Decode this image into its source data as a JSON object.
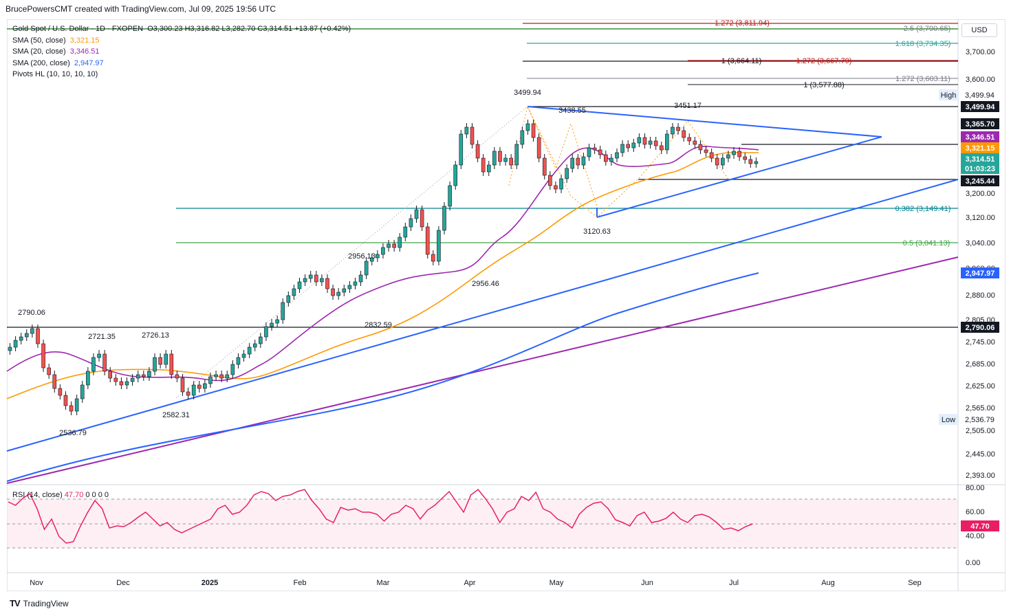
{
  "header": {
    "text": "BrucePowersCMT created with TradingView.com, Jul 09, 2025 19:56 UTC"
  },
  "legend": {
    "symbol": "Gold Spot / U.S. Dollar · 1D · FXOPEN",
    "ohlc": "O3,300.23  H3,316.82  L3,282.70  C3,314.51  +13.87 (+0.42%)",
    "sma50_label": "SMA (50, close)",
    "sma50_value": "3,321.15",
    "sma20_label": "SMA (20, close)",
    "sma20_value": "3,346.51",
    "sma200_label": "SMA (200, close)",
    "sma200_value": "2,947.97",
    "pivots_label": "Pivots HL (10, 10, 10, 10)"
  },
  "rsi_legend": {
    "label": "RSI (14, close)",
    "value": "47.70",
    "extras": "0 0 0 0"
  },
  "currency": "USD",
  "colors": {
    "up": "#26a69a",
    "down": "#ef5350",
    "sma50": "#ff9800",
    "sma20": "#9c27b0",
    "sma200": "#2962ff",
    "trend": "#2962ff",
    "rsi": "#e91e63"
  },
  "price_axis": [
    "3,700.00",
    "3,600.00",
    "3,200.00",
    "3,120.00",
    "3,040.00",
    "2,960.00",
    "2,880.00",
    "2,805.00",
    "2,745.00",
    "2,685.00",
    "2,625.00",
    "2,565.00",
    "2,505.00",
    "2,445.00",
    "2,393.00"
  ],
  "rsi_axis": [
    "80.00",
    "60.00",
    "40.00",
    "0.00"
  ],
  "price_tags": [
    {
      "text": "High",
      "kind": "label"
    },
    {
      "text": "3,499.94",
      "kind": "plain"
    },
    {
      "text": "3,499.94",
      "kind": "black"
    },
    {
      "text": "3,365.70",
      "kind": "black"
    },
    {
      "text": "3,346.51",
      "kind": "purple"
    },
    {
      "text": "3,321.15",
      "kind": "orange"
    },
    {
      "text": "3,314.51",
      "kind": "green"
    },
    {
      "text": "01:03:23",
      "kind": "green"
    },
    {
      "text": "3,245.44",
      "kind": "black"
    },
    {
      "text": "2,947.97",
      "kind": "blue"
    },
    {
      "text": "2,790.06",
      "kind": "black"
    },
    {
      "text": "Low",
      "kind": "label"
    },
    {
      "text": "2,536.79",
      "kind": "plain"
    },
    {
      "text": "47.70",
      "kind": "pink"
    }
  ],
  "time_axis": [
    "Nov",
    "Dec",
    "2025",
    "Feb",
    "Mar",
    "Apr",
    "May",
    "Jun",
    "Jul",
    "Aug",
    "Sep"
  ],
  "fib_labels": [
    "1.272 (3,811.94)",
    "2.5 (3,790.65)",
    "1.618 (3,734.35)",
    "1 (3,664.11)",
    "1.272 (3,667.79)",
    "1.272 (3,603.11)",
    "1 (3,577.88)",
    "0.382 (3,149.41)",
    "0.5 (3,041.13)"
  ],
  "pivot_labels": [
    "3499.94",
    "3438.55",
    "3451.17",
    "3120.63",
    "2956.13",
    "2956.46",
    "2832.59",
    "2790.06",
    "2721.35",
    "2726.13",
    "2582.31",
    "2536.79"
  ],
  "footer": {
    "brand": "TradingView"
  }
}
